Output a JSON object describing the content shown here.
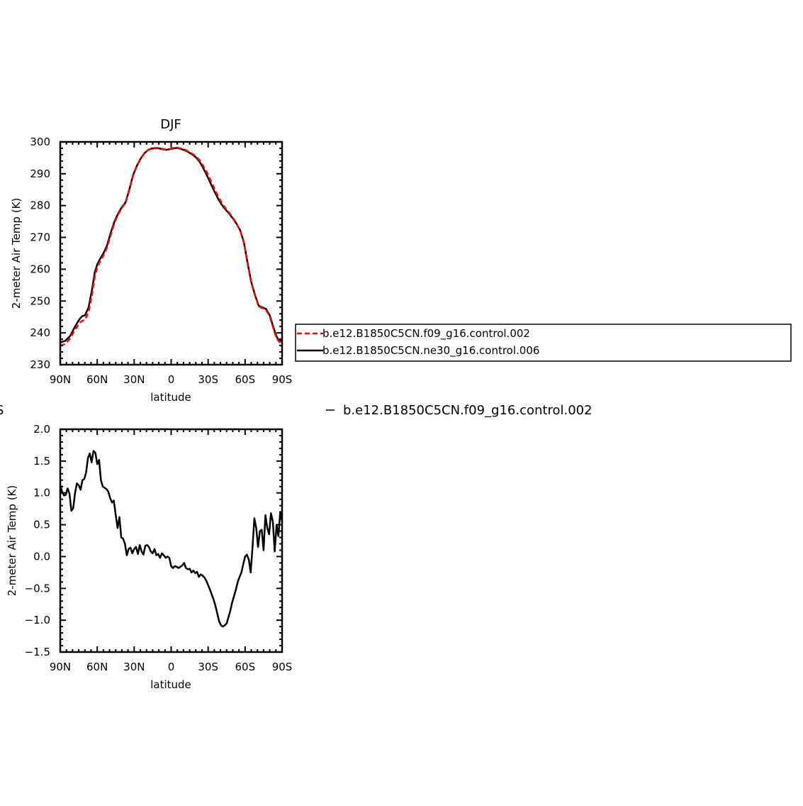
{
  "figure": {
    "top_title": "DJF",
    "stray_label_left": "S",
    "stray_legend_text": "b.e12.B1850C5CN.f09_g16.control.002"
  },
  "legend": {
    "entries": [
      {
        "label": "b.e12.B1850C5CN.f09_g16.control.002",
        "color": "#ff0000",
        "style": "dashed"
      },
      {
        "label": "b.e12.B1850C5CN.ne30_g16.control.006",
        "color": "#000000",
        "style": "solid"
      }
    ]
  },
  "chart_data": [
    {
      "type": "line",
      "title": "DJF",
      "xlabel": "latitude",
      "ylabel": "2-meter Air Temp (K)",
      "xlim": [
        90,
        -90
      ],
      "ylim": [
        230,
        300
      ],
      "x_tick_values": [
        90,
        60,
        30,
        0,
        -30,
        -60,
        -90
      ],
      "x_tick_labels": [
        "90N",
        "60N",
        "30N",
        "0",
        "30S",
        "60S",
        "90S"
      ],
      "y_tick_values": [
        230,
        240,
        250,
        260,
        270,
        280,
        290,
        300
      ],
      "y_tick_labels": [
        "230",
        "240",
        "250",
        "260",
        "270",
        "280",
        "290",
        "300"
      ],
      "grid": false,
      "legend_position": "right",
      "series": [
        {
          "name": "b.e12.B1850C5CN.ne30_g16.control.006",
          "color": "#000000",
          "dash": "solid",
          "x": [
            90,
            86,
            82,
            78,
            74,
            72,
            70,
            67,
            64,
            62,
            60,
            58,
            55,
            52,
            49,
            46,
            43,
            40,
            37,
            34,
            31,
            28,
            25,
            22,
            19,
            16,
            13,
            10,
            7,
            4,
            1,
            -2,
            -5,
            -8,
            -11,
            -14,
            -17,
            -20,
            -23,
            -26,
            -29,
            -32,
            -35,
            -38,
            -41,
            -44,
            -47,
            -50,
            -53,
            -56,
            -59,
            -62,
            -65,
            -68,
            -71,
            -74,
            -77,
            -80,
            -82,
            -84,
            -86,
            -88,
            -90
          ],
          "y": [
            237.0,
            237.5,
            239.0,
            242.0,
            244.5,
            245.3,
            245.5,
            248.0,
            254.0,
            259.0,
            261.5,
            263.0,
            265.0,
            267.5,
            271.5,
            275.0,
            277.5,
            279.5,
            281.0,
            285.0,
            289.5,
            292.3,
            294.6,
            296.3,
            297.4,
            297.9,
            298.0,
            298.0,
            297.7,
            297.5,
            297.7,
            298.0,
            298.1,
            297.8,
            297.4,
            296.8,
            296.1,
            295.2,
            293.8,
            291.8,
            289.5,
            287.0,
            284.5,
            282.2,
            280.3,
            278.8,
            277.5,
            276.0,
            274.3,
            272.2,
            268.5,
            262.0,
            256.0,
            252.0,
            248.5,
            248.0,
            247.5,
            245.5,
            243.0,
            240.5,
            238.5,
            237.5,
            237.5
          ]
        },
        {
          "name": "b.e12.B1850C5CN.f09_g16.control.002",
          "color": "#ff0000",
          "dash": "dashed",
          "x": [
            90,
            86,
            82,
            78,
            74,
            72,
            70,
            67,
            64,
            62,
            60,
            58,
            55,
            52,
            49,
            46,
            43,
            40,
            37,
            34,
            31,
            28,
            25,
            22,
            19,
            16,
            13,
            10,
            7,
            4,
            1,
            -2,
            -5,
            -8,
            -11,
            -14,
            -17,
            -20,
            -23,
            -26,
            -29,
            -32,
            -35,
            -38,
            -41,
            -44,
            -47,
            -50,
            -53,
            -56,
            -59,
            -62,
            -65,
            -68,
            -71,
            -74,
            -77,
            -80,
            -82,
            -84,
            -86,
            -88,
            -90
          ],
          "y": [
            236.0,
            236.5,
            238.2,
            241.0,
            243.2,
            243.8,
            244.0,
            246.5,
            252.5,
            257.6,
            260.5,
            262.2,
            264.3,
            266.8,
            270.8,
            274.6,
            277.2,
            279.3,
            280.8,
            284.8,
            289.3,
            292.2,
            294.5,
            296.2,
            297.4,
            297.9,
            298.1,
            298.1,
            297.8,
            297.6,
            297.8,
            298.1,
            298.2,
            297.9,
            297.6,
            297.0,
            296.3,
            295.5,
            294.3,
            292.5,
            290.4,
            288.0,
            285.4,
            283.0,
            280.9,
            279.2,
            277.8,
            276.2,
            274.4,
            272.2,
            268.4,
            261.9,
            255.8,
            251.8,
            248.3,
            247.8,
            247.2,
            245.2,
            242.6,
            240.0,
            238.0,
            237.2,
            237.0
          ]
        }
      ]
    },
    {
      "type": "line",
      "title": "",
      "xlabel": "latitude",
      "ylabel": "2-meter Air Temp (K)",
      "xlim": [
        90,
        -90
      ],
      "ylim": [
        -1.5,
        2.0
      ],
      "x_tick_values": [
        90,
        60,
        30,
        0,
        -30,
        -60,
        -90
      ],
      "x_tick_labels": [
        "90N",
        "60N",
        "30N",
        "0",
        "30S",
        "60S",
        "90S"
      ],
      "y_tick_values": [
        -1.5,
        -1.0,
        -0.5,
        0.0,
        0.5,
        1.0,
        1.5,
        2.0
      ],
      "y_tick_labels": [
        "−1.5",
        "−1.0",
        "−0.5",
        "0.0",
        "0.5",
        "1.0",
        "1.5",
        "2.0"
      ],
      "grid": false,
      "series": [
        {
          "color": "#000000",
          "dash": "solid",
          "x": [
            90,
            88.5,
            87,
            85.5,
            84,
            82.5,
            81,
            79.5,
            78,
            76.5,
            75,
            73.5,
            72,
            70.5,
            69,
            67.5,
            66,
            64.5,
            63,
            61.5,
            60,
            58.5,
            57,
            55.5,
            54,
            52.5,
            51,
            49.5,
            48,
            46.5,
            45,
            43.5,
            42,
            40.5,
            39,
            37.5,
            36,
            34.5,
            33,
            31.5,
            30,
            28.5,
            27,
            25.5,
            24,
            22.5,
            21,
            19.5,
            18,
            16.5,
            15,
            13.5,
            12,
            10.5,
            9,
            7.5,
            6,
            4.5,
            3,
            1.5,
            0,
            -1.5,
            -3,
            -4.5,
            -6,
            -7.5,
            -9,
            -10.5,
            -12,
            -13.5,
            -15,
            -16.5,
            -18,
            -19.5,
            -21,
            -22.5,
            -24,
            -25.5,
            -27,
            -28.5,
            -30,
            -31.5,
            -33,
            -34.5,
            -36,
            -37.5,
            -39,
            -40.5,
            -42,
            -43.5,
            -45,
            -46.5,
            -48,
            -49.5,
            -51,
            -52.5,
            -54,
            -55.5,
            -57,
            -58.5,
            -60,
            -61.5,
            -63,
            -64.5,
            -66,
            -67.5,
            -69,
            -70.5,
            -72,
            -73.5,
            -75,
            -76.5,
            -78,
            -79.5,
            -81,
            -82.5,
            -84,
            -85.5,
            -87,
            -88.5,
            -90
          ],
          "y": [
            1.12,
            1.02,
            0.96,
            0.97,
            1.07,
            0.99,
            0.72,
            0.76,
            1.0,
            1.15,
            1.12,
            1.05,
            1.2,
            1.22,
            1.32,
            1.55,
            1.62,
            1.48,
            1.66,
            1.63,
            1.45,
            1.52,
            1.2,
            1.1,
            1.08,
            1.06,
            1.02,
            0.92,
            0.85,
            0.88,
            0.65,
            0.45,
            0.62,
            0.3,
            0.28,
            0.2,
            0.02,
            0.12,
            0.14,
            0.05,
            0.12,
            0.15,
            0.04,
            0.18,
            0.08,
            0.03,
            0.17,
            0.18,
            0.15,
            0.08,
            0.05,
            0.12,
            0.02,
            0.04,
            -0.02,
            0.05,
            0.02,
            -0.02,
            0.0,
            -0.02,
            -0.15,
            -0.18,
            -0.15,
            -0.16,
            -0.18,
            -0.16,
            -0.14,
            -0.1,
            -0.18,
            -0.2,
            -0.19,
            -0.25,
            -0.22,
            -0.26,
            -0.24,
            -0.32,
            -0.28,
            -0.3,
            -0.33,
            -0.38,
            -0.45,
            -0.52,
            -0.6,
            -0.68,
            -0.78,
            -0.9,
            -1.02,
            -1.08,
            -1.1,
            -1.08,
            -1.05,
            -0.95,
            -0.85,
            -0.72,
            -0.62,
            -0.52,
            -0.4,
            -0.32,
            -0.25,
            -0.12,
            0.0,
            0.03,
            -0.05,
            -0.25,
            0.15,
            0.6,
            0.45,
            0.15,
            0.4,
            0.42,
            0.1,
            0.65,
            0.45,
            0.35,
            0.68,
            0.55,
            0.08,
            0.5,
            0.32,
            0.7,
            0.55
          ]
        }
      ]
    }
  ]
}
